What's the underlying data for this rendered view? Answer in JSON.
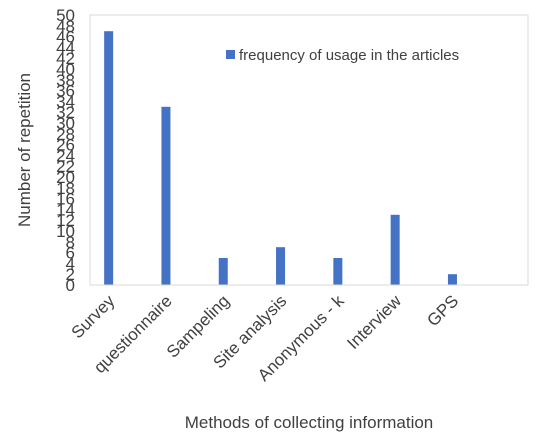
{
  "chart_data": {
    "type": "bar",
    "categories": [
      "Survey",
      "questionnaire",
      "Sampeling",
      "Site analysis",
      "Anonymous - k",
      "Interview",
      "GPS"
    ],
    "series": [
      {
        "name": "frequency of usage in the articles",
        "values": [
          47,
          33,
          5,
          7,
          5,
          13,
          2
        ],
        "color": "#4472C4"
      }
    ],
    "xlabel": "Methods of collecting information",
    "ylabel": "Number of repetition",
    "ylim": [
      0,
      50
    ],
    "yticks": [
      0,
      2,
      4,
      6,
      8,
      10,
      12,
      14,
      16,
      18,
      20,
      22,
      24,
      26,
      28,
      30,
      32,
      34,
      36,
      38,
      40,
      42,
      44,
      46,
      48,
      50
    ],
    "legend_position": "top-right",
    "grid": false
  }
}
